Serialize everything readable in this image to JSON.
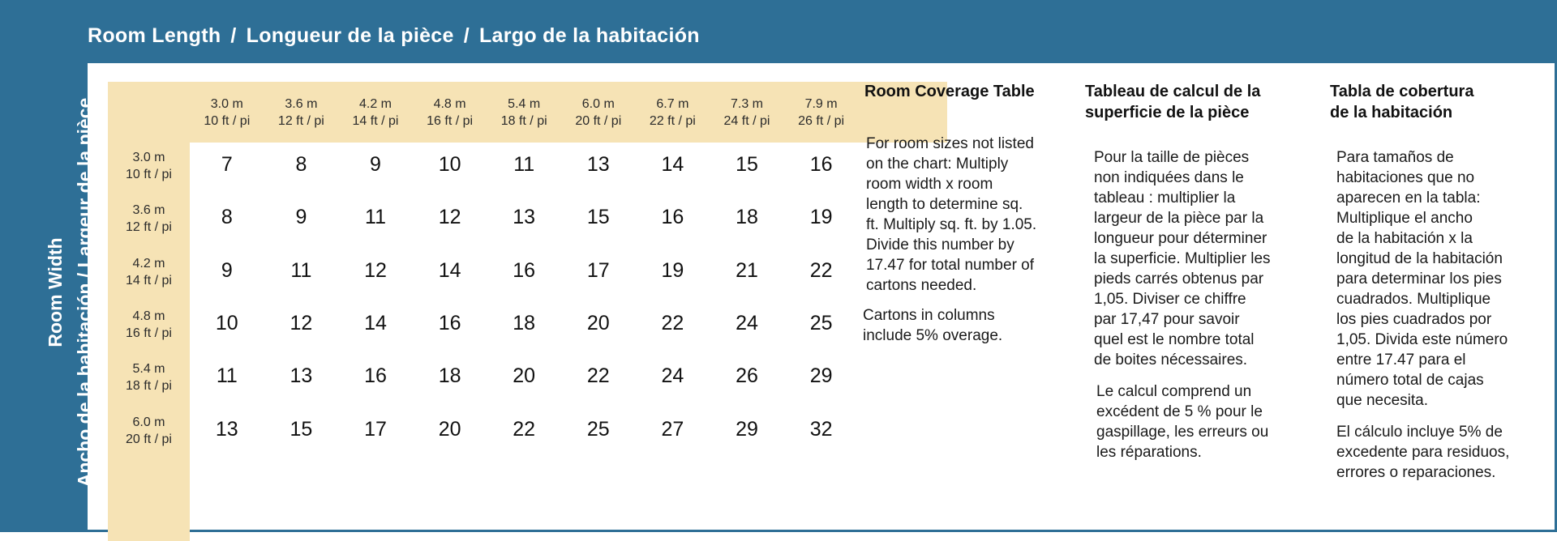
{
  "header": {
    "title_en": "Room Length",
    "sep1": "/",
    "title_fr": "Longueur de la pièce",
    "sep2": "/",
    "title_es": "Largo de la habitación"
  },
  "side": {
    "line1": "Room Width",
    "line2": "Ancho de la habitación  /  Largeur de la pièce"
  },
  "table": {
    "columns": [
      {
        "m": "3.0 m",
        "ft": "10 ft / pi"
      },
      {
        "m": "3.6 m",
        "ft": "12 ft / pi"
      },
      {
        "m": "4.2 m",
        "ft": "14 ft / pi"
      },
      {
        "m": "4.8 m",
        "ft": "16 ft / pi"
      },
      {
        "m": "5.4 m",
        "ft": "18 ft / pi"
      },
      {
        "m": "6.0 m",
        "ft": "20 ft / pi"
      },
      {
        "m": "6.7 m",
        "ft": "22 ft / pi"
      },
      {
        "m": "7.3 m",
        "ft": "24 ft / pi"
      },
      {
        "m": "7.9 m",
        "ft": "26 ft / pi"
      }
    ],
    "rows": [
      {
        "m": "3.0 m",
        "ft": "10 ft / pi",
        "values": [
          "7",
          "8",
          "9",
          "10",
          "11",
          "13",
          "14",
          "15",
          "16"
        ]
      },
      {
        "m": "3.6 m",
        "ft": "12 ft / pi",
        "values": [
          "8",
          "9",
          "11",
          "12",
          "13",
          "15",
          "16",
          "18",
          "19"
        ]
      },
      {
        "m": "4.2 m",
        "ft": "14 ft / pi",
        "values": [
          "9",
          "11",
          "12",
          "14",
          "16",
          "17",
          "19",
          "21",
          "22"
        ]
      },
      {
        "m": "4.8 m",
        "ft": "16 ft / pi",
        "values": [
          "10",
          "12",
          "14",
          "16",
          "18",
          "20",
          "22",
          "24",
          "25"
        ]
      },
      {
        "m": "5.4 m",
        "ft": "18 ft / pi",
        "values": [
          "11",
          "13",
          "16",
          "18",
          "20",
          "22",
          "24",
          "26",
          "29"
        ]
      },
      {
        "m": "6.0 m",
        "ft": "20 ft / pi",
        "values": [
          "13",
          "15",
          "17",
          "20",
          "22",
          "25",
          "27",
          "29",
          "32"
        ]
      }
    ]
  },
  "info_en": {
    "heading": "Room Coverage Table",
    "lines": [
      "For room sizes not listed",
      "on the chart: Multiply",
      "room width x room",
      "length to determine sq.",
      "ft. Multiply sq. ft. by 1.05.",
      "Divide this number by",
      "17.47 for total number of",
      "cartons needed."
    ],
    "note_lines": [
      "Cartons in columns",
      "include 5% overage."
    ]
  },
  "info_fr": {
    "heading_lines": [
      "Tableau de calcul de la",
      "superficie de la pièce"
    ],
    "lines": [
      "Pour la taille de pièces",
      "non indiquées dans le",
      "tableau :  multiplier la",
      "largeur de la pièce par la",
      "longueur pour déterminer",
      "la superficie. Multiplier les",
      "pieds carrés obtenus par",
      "1,05. Diviser ce chiffre",
      " par 17,47 pour savoir",
      "quel est le nombre total",
      "de boites nécessaires."
    ],
    "note_lines": [
      "Le calcul comprend un",
      "excédent de 5 % pour le",
      "gaspillage, les erreurs ou",
      "les réparations."
    ]
  },
  "info_es": {
    "heading_lines": [
      "Tabla de cobertura",
      "de la habitación"
    ],
    "lines": [
      "Para tamaños de",
      "habitaciones que no",
      "aparecen en la tabla:",
      "Multiplique el ancho",
      "de la habitación x la",
      "longitud de la habitación",
      "para determinar los pies",
      "cuadrados. Multiplique",
      "los pies cuadrados por",
      "1,05. Divida este número",
      "entre 17.47 para el",
      "número total de cajas",
      "que necesita."
    ],
    "note_lines": [
      "El cálculo incluye 5% de",
      "excedente para residuos,",
      "errores o reparaciones."
    ]
  },
  "colors": {
    "frame": "#2e6f96",
    "header_fill": "#f6e3b5"
  }
}
